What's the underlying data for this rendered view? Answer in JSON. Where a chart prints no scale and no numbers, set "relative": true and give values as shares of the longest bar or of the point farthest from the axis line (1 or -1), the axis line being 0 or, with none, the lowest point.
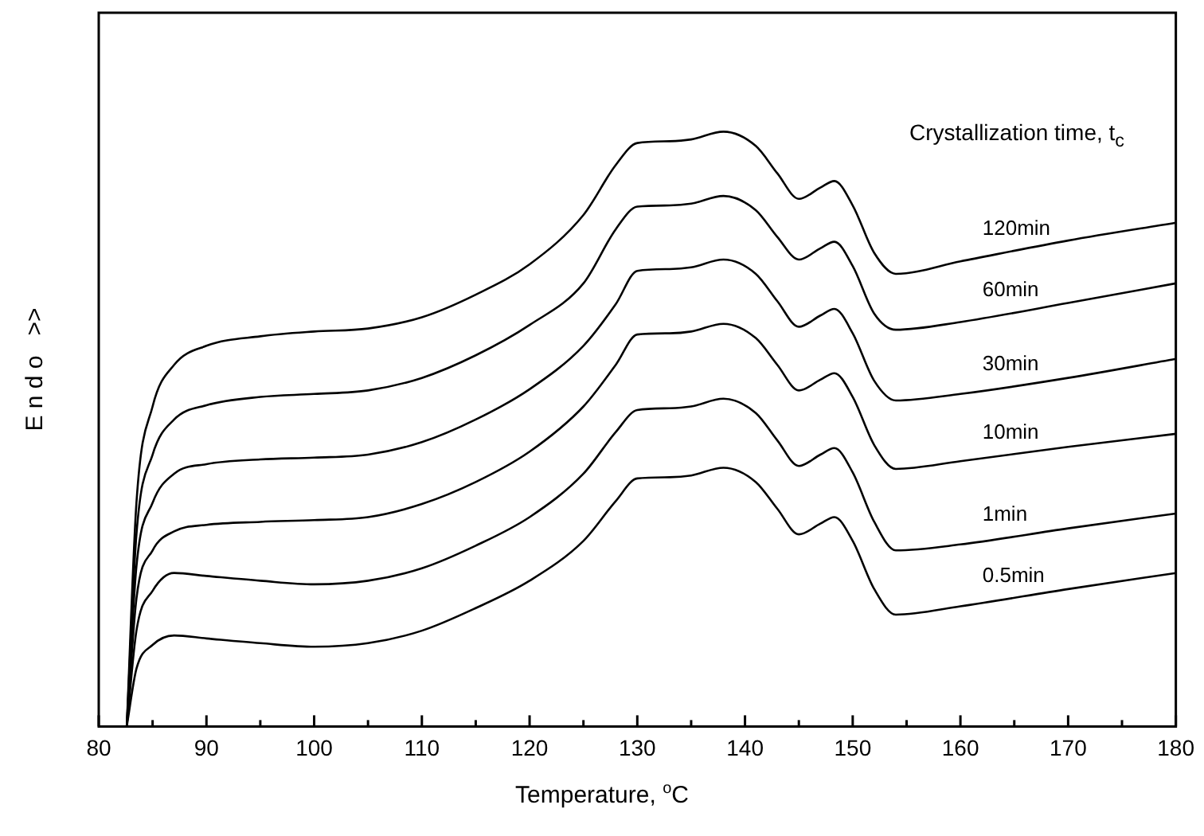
{
  "chart_data": {
    "type": "line",
    "xlabel": "Temperature, $^{o}$C",
    "ylabel": "E n d o   >>",
    "legend_title": "Crystallization time, t$_{c}$",
    "relative": true,
    "marker": "none",
    "line_style": "solid",
    "x": [
      82.6,
      83.5,
      85,
      87,
      90,
      95,
      100,
      105,
      110,
      115,
      120,
      125,
      128,
      130,
      133,
      135,
      138,
      141,
      143,
      145,
      147,
      148.3,
      150,
      152,
      154,
      160,
      170,
      180
    ],
    "xlim": [
      80,
      180
    ],
    "xticks": [
      80,
      {
        "value": 85,
        "label": null
      },
      90,
      {
        "value": 95,
        "label": null
      },
      100,
      {
        "value": 105,
        "label": null
      },
      110,
      {
        "value": 115,
        "label": null
      },
      120,
      {
        "value": 125,
        "label": null
      },
      130,
      {
        "value": 135,
        "label": null
      },
      140,
      {
        "value": 145,
        "label": null
      },
      150,
      {
        "value": 155,
        "label": null
      },
      160,
      {
        "value": 165,
        "label": null
      },
      170,
      {
        "value": 175,
        "label": null
      },
      180
    ],
    "series": [
      {
        "name": "120min",
        "color": "#000000",
        "values": [
          0,
          0.376,
          0.538,
          0.608,
          0.64,
          0.656,
          0.664,
          0.669,
          0.688,
          0.726,
          0.777,
          0.86,
          0.944,
          0.981,
          0.984,
          0.987,
          1,
          0.976,
          0.93,
          0.887,
          0.906,
          0.917,
          0.876,
          0.796,
          0.761,
          0.782,
          0.817,
          0.847
        ]
      },
      {
        "name": "60min",
        "color": "#000000",
        "values": [
          0,
          0.323,
          0.457,
          0.516,
          0.54,
          0.554,
          0.559,
          0.565,
          0.586,
          0.624,
          0.675,
          0.745,
          0.836,
          0.874,
          0.876,
          0.879,
          0.892,
          0.868,
          0.823,
          0.785,
          0.804,
          0.815,
          0.774,
          0.694,
          0.667,
          0.68,
          0.712,
          0.745
        ]
      },
      {
        "name": "30min",
        "color": "#000000",
        "values": [
          0,
          0.269,
          0.376,
          0.425,
          0.441,
          0.449,
          0.452,
          0.457,
          0.478,
          0.516,
          0.567,
          0.64,
          0.71,
          0.766,
          0.769,
          0.772,
          0.785,
          0.761,
          0.715,
          0.672,
          0.691,
          0.702,
          0.661,
          0.581,
          0.548,
          0.559,
          0.586,
          0.618
        ]
      },
      {
        "name": "10min",
        "color": "#000000",
        "values": [
          0,
          0.215,
          0.296,
          0.328,
          0.339,
          0.344,
          0.347,
          0.352,
          0.374,
          0.411,
          0.462,
          0.538,
          0.608,
          0.659,
          0.661,
          0.664,
          0.677,
          0.653,
          0.608,
          0.565,
          0.583,
          0.594,
          0.554,
          0.473,
          0.433,
          0.446,
          0.47,
          0.492
        ]
      },
      {
        "name": "1min",
        "color": "#000000",
        "values": [
          0,
          0.161,
          0.228,
          0.258,
          0.253,
          0.245,
          0.239,
          0.245,
          0.266,
          0.304,
          0.352,
          0.425,
          0.495,
          0.532,
          0.535,
          0.538,
          0.551,
          0.527,
          0.481,
          0.438,
          0.457,
          0.468,
          0.427,
          0.344,
          0.296,
          0.306,
          0.333,
          0.358
        ]
      },
      {
        "name": "0.5min",
        "color": "#000000",
        "values": [
          0,
          0.097,
          0.137,
          0.153,
          0.148,
          0.14,
          0.134,
          0.14,
          0.161,
          0.199,
          0.245,
          0.312,
          0.379,
          0.417,
          0.419,
          0.422,
          0.435,
          0.411,
          0.366,
          0.323,
          0.341,
          0.352,
          0.312,
          0.231,
          0.188,
          0.202,
          0.231,
          0.258
        ]
      }
    ]
  }
}
